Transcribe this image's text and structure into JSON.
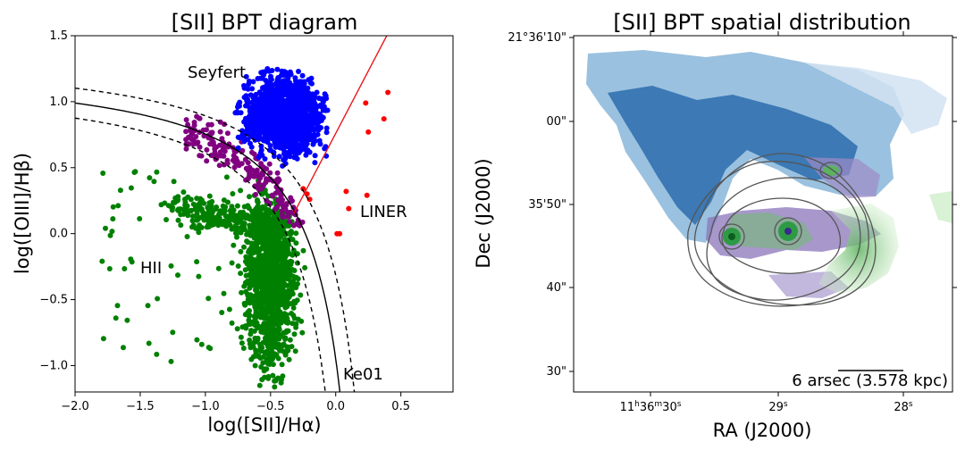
{
  "chart_data": [
    {
      "type": "scatter",
      "title": "[SII] BPT diagram",
      "xlabel": "log([SII]/Hα)",
      "ylabel": "log([OIII]/Hβ)",
      "xlim": [
        -2.0,
        0.9
      ],
      "ylim": [
        -1.2,
        1.5
      ],
      "xticks": [
        -2.0,
        -1.5,
        -1.0,
        -0.5,
        0.0,
        0.5
      ],
      "xtick_labels": [
        "−2.0",
        "−1.5",
        "−1.0",
        "−0.5",
        "0.0",
        "0.5"
      ],
      "yticks": [
        -1.0,
        -0.5,
        0.0,
        0.5,
        1.0,
        1.5
      ],
      "ytick_labels": [
        "−1.0",
        "−0.5",
        "0.0",
        "0.5",
        "1.0",
        "1.5"
      ],
      "region_labels": [
        {
          "text": "Seyfert",
          "x": -1.1,
          "y": 1.18
        },
        {
          "text": "LINER",
          "x": 0.17,
          "y": 0.14
        },
        {
          "text": "HII",
          "x": -1.55,
          "y": -0.3
        },
        {
          "text": "Ke01",
          "x": 0.04,
          "y": -1.1
        }
      ],
      "curves": [
        {
          "name": "Ke01 maximum starburst line",
          "equation": "y = 0.72/(x - 0.32) + 1.30",
          "style": "solid",
          "color": "#000000"
        },
        {
          "name": "Ke01 +0.1 dex",
          "equation": "y = 0.72/(x - 0.42) + 1.40",
          "style": "dashed",
          "color": "#000000"
        },
        {
          "name": "Ke01 -0.1 dex",
          "equation": "y = 0.72/(x - 0.22) + 1.20",
          "style": "dashed",
          "color": "#000000"
        },
        {
          "name": "Seyfert/LINER line",
          "equation": "y = 1.89x + 0.76",
          "style": "solid",
          "color": "#e8181a"
        }
      ],
      "series": [
        {
          "name": "Seyfert",
          "color": "#0000ff",
          "x_range": [
            -0.85,
            -0.05
          ],
          "y_range": [
            0.55,
            1.25
          ],
          "count": 1400
        },
        {
          "name": "Composite",
          "color": "#800080",
          "x_range": [
            -1.15,
            -0.15
          ],
          "y_range": [
            0.05,
            0.9
          ],
          "count": 220
        },
        {
          "name": "HII",
          "color": "#008000",
          "x_range": [
            -1.8,
            -0.2
          ],
          "y_range": [
            -1.17,
            0.58
          ],
          "count": 1500
        },
        {
          "name": "LINER",
          "color": "#ff0000",
          "points": [
            [
              0.4,
              1.07
            ],
            [
              0.37,
              0.87
            ],
            [
              0.25,
              0.77
            ],
            [
              0.23,
              0.99
            ],
            [
              -0.22,
              0.3
            ],
            [
              -0.25,
              0.34
            ],
            [
              0.08,
              0.32
            ],
            [
              0.24,
              0.29
            ],
            [
              0.01,
              0.0
            ],
            [
              0.03,
              0.0
            ],
            [
              0.1,
              0.19
            ],
            [
              -0.2,
              0.26
            ]
          ]
        }
      ]
    },
    {
      "type": "heatmap",
      "title": "[SII] BPT spatial distribution",
      "xlabel": "RA (J2000)",
      "ylabel": "Dec (J2000)",
      "x_ticks": [
        {
          "h": "11",
          "m": "36",
          "s": "30",
          "sec": 30
        },
        {
          "s": "29",
          "sec": 29
        },
        {
          "s": "28",
          "sec": 28
        }
      ],
      "y_ticks": [
        "21°36'10\"",
        "00\"",
        "35'50\"",
        "40\"",
        "30\""
      ],
      "colormaps": {
        "Seyfert": "Blues",
        "Composite": "Purples",
        "HII": "Greens",
        "LINER": "Reds"
      },
      "contours": {
        "color": "#555555",
        "levels": 5
      },
      "scalebar": {
        "label": "6 arsec (3.578 kpc)",
        "length_arcsec": 6
      }
    }
  ]
}
